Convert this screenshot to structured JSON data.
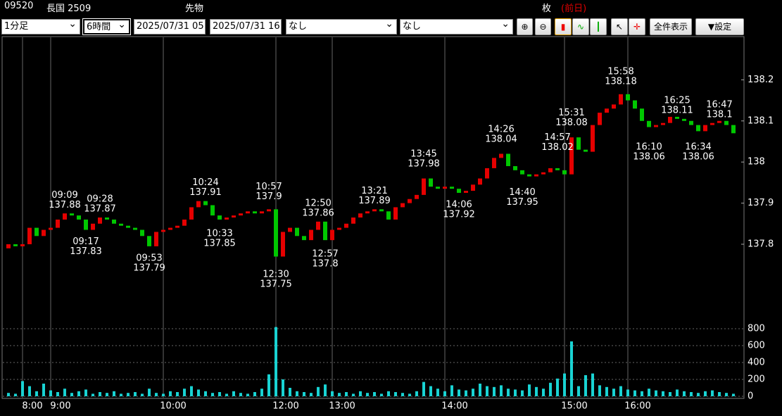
{
  "header": {
    "code": "09520",
    "name": "長国 2509",
    "market": "先物",
    "unit": "枚",
    "previous": "(前日)"
  },
  "toolbar": {
    "interval": "1分足",
    "span": "6時間",
    "from": "2025/07/31 05",
    "to": "2025/07/31 16",
    "indicator1": "なし",
    "indicator2": "なし",
    "show_all": "全件表示",
    "settings": "▼設定"
  },
  "chart_data": {
    "type": "candlestick",
    "open": [
      137.79,
      137.8,
      137.795,
      137.8,
      137.84,
      137.82,
      137.835,
      137.84,
      137.86,
      137.875,
      137.87,
      137.86,
      137.835,
      137.85,
      137.865,
      137.86,
      137.85,
      137.845,
      137.84,
      137.835,
      137.82,
      137.795,
      137.83,
      137.835,
      137.84,
      137.845,
      137.86,
      137.89,
      137.905,
      137.895,
      137.87,
      137.86,
      137.865,
      137.87,
      137.875,
      137.88,
      137.875,
      137.88,
      137.885,
      137.77,
      137.83,
      137.84,
      137.82,
      137.81,
      137.835,
      137.855,
      137.81,
      137.835,
      137.84,
      137.85,
      137.865,
      137.875,
      137.88,
      137.885,
      137.88,
      137.86,
      137.89,
      137.9,
      137.91,
      137.92,
      137.96,
      137.94,
      137.935,
      137.94,
      137.935,
      137.925,
      137.93,
      137.945,
      137.96,
      137.985,
      138.01,
      138.02,
      137.99,
      137.98,
      137.97,
      137.965,
      137.97,
      137.975,
      137.985,
      137.98,
      137.97,
      138.06,
      138.03,
      138.025,
      138.09,
      138.12,
      138.13,
      138.14,
      138.165,
      138.15,
      138.13,
      138.1,
      138.085,
      138.09,
      138.095,
      138.11,
      138.105,
      138.1,
      138.09,
      138.075,
      138.09,
      138.095,
      138.1,
      138.09
    ],
    "close": [
      137.8,
      137.795,
      137.8,
      137.84,
      137.82,
      137.835,
      137.84,
      137.86,
      137.875,
      137.87,
      137.86,
      137.835,
      137.85,
      137.865,
      137.86,
      137.85,
      137.845,
      137.84,
      137.835,
      137.82,
      137.795,
      137.83,
      137.835,
      137.84,
      137.845,
      137.86,
      137.89,
      137.905,
      137.895,
      137.87,
      137.86,
      137.865,
      137.87,
      137.875,
      137.88,
      137.875,
      137.88,
      137.885,
      137.77,
      137.83,
      137.84,
      137.82,
      137.81,
      137.835,
      137.855,
      137.81,
      137.835,
      137.84,
      137.85,
      137.865,
      137.875,
      137.88,
      137.885,
      137.88,
      137.86,
      137.89,
      137.9,
      137.91,
      137.92,
      137.96,
      137.94,
      137.935,
      137.94,
      137.935,
      137.925,
      137.93,
      137.945,
      137.96,
      137.985,
      138.01,
      138.02,
      137.99,
      137.98,
      137.97,
      137.965,
      137.97,
      137.975,
      137.985,
      137.98,
      137.97,
      138.06,
      138.03,
      138.025,
      138.09,
      138.12,
      138.13,
      138.14,
      138.165,
      138.15,
      138.13,
      138.1,
      138.085,
      138.09,
      138.095,
      138.11,
      138.105,
      138.1,
      138.09,
      138.075,
      138.09,
      138.095,
      138.1,
      138.09,
      138.07
    ],
    "volume": [
      40,
      30,
      180,
      120,
      60,
      150,
      70,
      50,
      90,
      40,
      60,
      80,
      30,
      50,
      40,
      60,
      30,
      40,
      50,
      30,
      90,
      40,
      30,
      60,
      50,
      90,
      120,
      80,
      60,
      40,
      50,
      30,
      60,
      40,
      30,
      50,
      90,
      260,
      820,
      200,
      100,
      60,
      50,
      40,
      110,
      140,
      60,
      40,
      50,
      30,
      60,
      40,
      50,
      30,
      60,
      50,
      40,
      30,
      60,
      170,
      120,
      90,
      60,
      130,
      80,
      70,
      90,
      150,
      120,
      110,
      130,
      90,
      80,
      70,
      140,
      110,
      90,
      160,
      210,
      270,
      650,
      120,
      250,
      270,
      130,
      110,
      90,
      120,
      80,
      70,
      60,
      90,
      70,
      60,
      50,
      80,
      60,
      50,
      40,
      60,
      70,
      50,
      40,
      30
    ],
    "xticks": [
      {
        "value": 2,
        "label": "8:00"
      },
      {
        "value": 6,
        "label": "9:00"
      },
      {
        "value": 22,
        "label": "10:00"
      },
      {
        "value": 38,
        "label": "12:00"
      },
      {
        "value": 46,
        "label": "13:00"
      },
      {
        "value": 62,
        "label": "14:00"
      },
      {
        "value": 79,
        "label": "15:00"
      },
      {
        "value": 88,
        "label": "16:00"
      }
    ],
    "ylim": [
      137.615,
      138.3
    ],
    "yticks": [
      137.8,
      137.9,
      138,
      138.1,
      138.2
    ],
    "y2lim": [
      0,
      800
    ],
    "y2ticks": [
      0,
      200,
      400,
      600,
      800
    ],
    "up_color": "#e60000",
    "down_color": "#00c800",
    "volume_color": "#19d3d3",
    "annotations": [
      {
        "index": 8,
        "time": "09:09",
        "price": 137.88,
        "position": "above"
      },
      {
        "index": 11,
        "time": "09:17",
        "price": 137.83,
        "position": "below"
      },
      {
        "index": 13,
        "time": "09:28",
        "price": 137.87,
        "position": "above"
      },
      {
        "index": 20,
        "time": "09:53",
        "price": 137.79,
        "position": "below"
      },
      {
        "index": 28,
        "time": "10:24",
        "price": 137.91,
        "position": "above"
      },
      {
        "index": 30,
        "time": "10:33",
        "price": 137.85,
        "position": "below"
      },
      {
        "index": 37,
        "time": "10:57",
        "price": 137.9,
        "position": "above"
      },
      {
        "index": 38,
        "time": "12:30",
        "price": 137.75,
        "position": "below"
      },
      {
        "index": 44,
        "time": "12:50",
        "price": 137.86,
        "position": "above"
      },
      {
        "index": 45,
        "time": "12:57",
        "price": 137.8,
        "position": "below"
      },
      {
        "index": 52,
        "time": "13:21",
        "price": 137.89,
        "position": "above"
      },
      {
        "index": 59,
        "time": "13:45",
        "price": 137.98,
        "position": "above"
      },
      {
        "index": 64,
        "time": "14:06",
        "price": 137.92,
        "position": "below"
      },
      {
        "index": 70,
        "time": "14:26",
        "price": 138.04,
        "position": "above"
      },
      {
        "index": 73,
        "time": "14:40",
        "price": 137.95,
        "position": "below"
      },
      {
        "index": 78,
        "time": "14:57",
        "price": 138.02,
        "position": "above"
      },
      {
        "index": 80,
        "time": "15:31",
        "price": 138.08,
        "position": "above"
      },
      {
        "index": 87,
        "time": "15:58",
        "price": 138.18,
        "position": "above"
      },
      {
        "index": 91,
        "time": "16:10",
        "price": 138.06,
        "position": "below"
      },
      {
        "index": 95,
        "time": "16:25",
        "price": 138.11,
        "position": "above"
      },
      {
        "index": 98,
        "time": "16:34",
        "price": 138.06,
        "position": "below"
      },
      {
        "index": 101,
        "time": "16:47",
        "price": 138.1,
        "position": "above"
      }
    ]
  }
}
